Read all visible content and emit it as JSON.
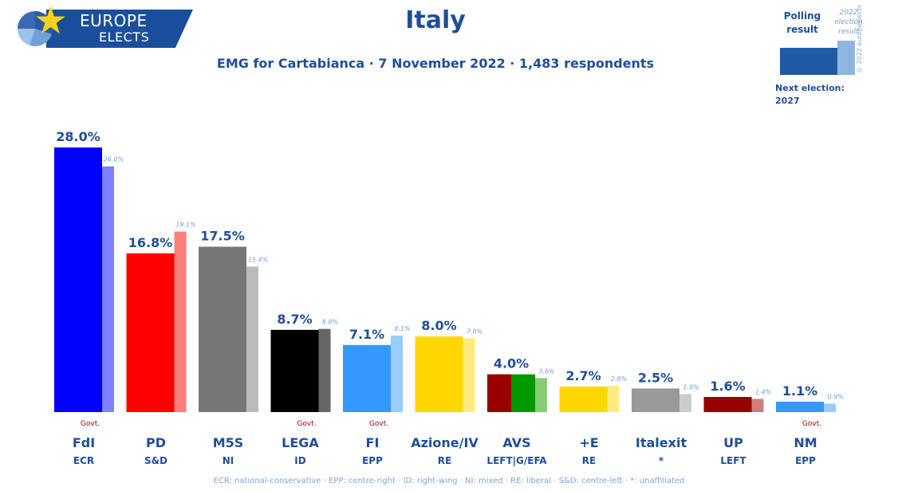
{
  "logo": {
    "line1": "EUROPE",
    "line2": "ELECTS"
  },
  "title": "Italy",
  "subtitle": "EMG for Cartabianca · 7 November 2022 · 1,483 respondents",
  "legend": {
    "polling_label": "Polling result",
    "election_label": "2022 election result",
    "next_election_label": "Next election:",
    "next_election_year": "2027",
    "copyright": "© 2022 europeelects"
  },
  "footnote": "ECR: national-conservative · EPP: centre-right · ID: right-wing · NI: mixed · RE: liberal · S&D: centre-left · *: unaffiliated",
  "chart_data": {
    "type": "bar",
    "title": "Italy",
    "categories": [
      "FdI",
      "PD",
      "M5S",
      "LEGA",
      "FI",
      "Azione/IV",
      "AVS",
      "+E",
      "Italexit",
      "UP",
      "NM"
    ],
    "groups": [
      "ECR",
      "S&D",
      "NI",
      "ID",
      "EPP",
      "RE",
      "LEFT|G/EFA",
      "RE",
      "*",
      "LEFT",
      "EPP"
    ],
    "govt": [
      true,
      false,
      false,
      true,
      true,
      false,
      false,
      false,
      false,
      false,
      true
    ],
    "govt_label": "Govt.",
    "series": [
      {
        "name": "Polling result",
        "values": [
          28.0,
          16.8,
          17.5,
          8.7,
          7.1,
          8.0,
          4.0,
          2.7,
          2.5,
          1.6,
          1.1
        ],
        "labels": [
          "28.0%",
          "16.8%",
          "17.5%",
          "8.7%",
          "7.1%",
          "8.0%",
          "4.0%",
          "2.7%",
          "2.5%",
          "1.6%",
          "1.1%"
        ]
      },
      {
        "name": "2022 election result",
        "values": [
          26.0,
          19.1,
          15.4,
          8.8,
          8.1,
          7.8,
          3.6,
          2.8,
          1.9,
          1.4,
          0.9
        ],
        "labels": [
          "26.0%",
          "19.1%",
          "15.4%",
          "8.8%",
          "8.1%",
          "7.8%",
          "3.6%",
          "2.8%",
          "1.9%",
          "1.4%",
          "0.9%"
        ]
      }
    ],
    "colors": [
      "#0000ff",
      "#ff0000",
      "#777777",
      "#000000",
      "#3399ff",
      "#ffd700",
      "#990000",
      "#ffd700",
      "#999999",
      "#990000",
      "#3399ff"
    ],
    "election_colors": [
      "#7f7fff",
      "#ff7f7f",
      "#bbbbbb",
      "#666666",
      "#99ccff",
      "#ffec80",
      "#88cc77",
      "#ffec80",
      "#cccccc",
      "#cc7f7f",
      "#99ccff"
    ],
    "avs_stripes": [
      "#990000",
      "#009900",
      "#66cc00"
    ],
    "ylim": [
      0,
      30
    ]
  }
}
